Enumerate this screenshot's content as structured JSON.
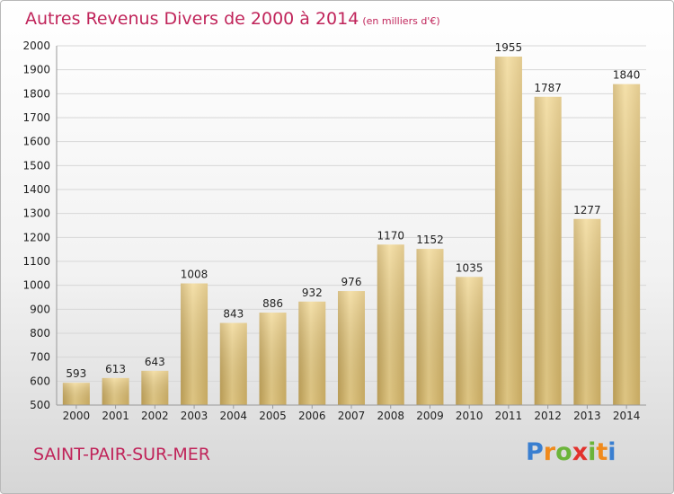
{
  "chart_data": {
    "type": "bar",
    "title": "Autres Revenus Divers de 2000 à 2014",
    "unit": "(en milliers d'€)",
    "categories": [
      "2000",
      "2001",
      "2002",
      "2003",
      "2004",
      "2005",
      "2006",
      "2007",
      "2008",
      "2009",
      "2010",
      "2011",
      "2012",
      "2013",
      "2014"
    ],
    "values": [
      593,
      613,
      643,
      1008,
      843,
      886,
      932,
      976,
      1170,
      1152,
      1035,
      1955,
      1787,
      1277,
      1840
    ],
    "ylim": [
      500,
      2000
    ],
    "yticks": [
      500,
      600,
      700,
      800,
      900,
      1000,
      1100,
      1200,
      1300,
      1400,
      1500,
      1600,
      1700,
      1800,
      1900,
      2000
    ],
    "grid": true,
    "bar_color": "#e8c878"
  },
  "location": "SAINT-PAIR-SUR-MER",
  "brand": {
    "letters": [
      "P",
      "r",
      "o",
      "x",
      "i",
      "t",
      "i"
    ],
    "colors": [
      "#3a7fd0",
      "#f08a1c",
      "#6bb43a",
      "#e2322d",
      "#6bb43a",
      "#f08a1c",
      "#3a7fd0"
    ]
  }
}
